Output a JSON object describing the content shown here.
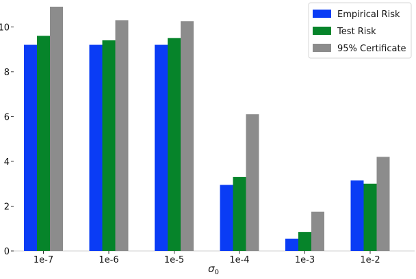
{
  "chart_data": {
    "type": "bar",
    "categories": [
      "1e-7",
      "1e-6",
      "1e-5",
      "1e-4",
      "1e-3",
      "1e-2"
    ],
    "series": [
      {
        "name": "Empirical Risk",
        "color": "#0a3cf5",
        "values": [
          9.2,
          9.2,
          9.2,
          2.95,
          0.55,
          3.15
        ]
      },
      {
        "name": "Test Risk",
        "color": "#06842a",
        "values": [
          9.6,
          9.4,
          9.5,
          3.3,
          0.85,
          3.0
        ]
      },
      {
        "name": "95% Certificate",
        "color": "#8c8c8c",
        "values": [
          10.9,
          10.3,
          10.25,
          6.1,
          1.75,
          4.2
        ]
      }
    ],
    "yticks": [
      0,
      2,
      4,
      6,
      8,
      10
    ],
    "ytick_labels": [
      "0",
      "2",
      "4",
      "6",
      "8",
      "10"
    ],
    "ylim": [
      0,
      11.2
    ],
    "xlabel_base": "σ",
    "xlabel_sub": "0",
    "ylabel": "",
    "title": "",
    "legend_position": "top-right",
    "grid": false
  }
}
